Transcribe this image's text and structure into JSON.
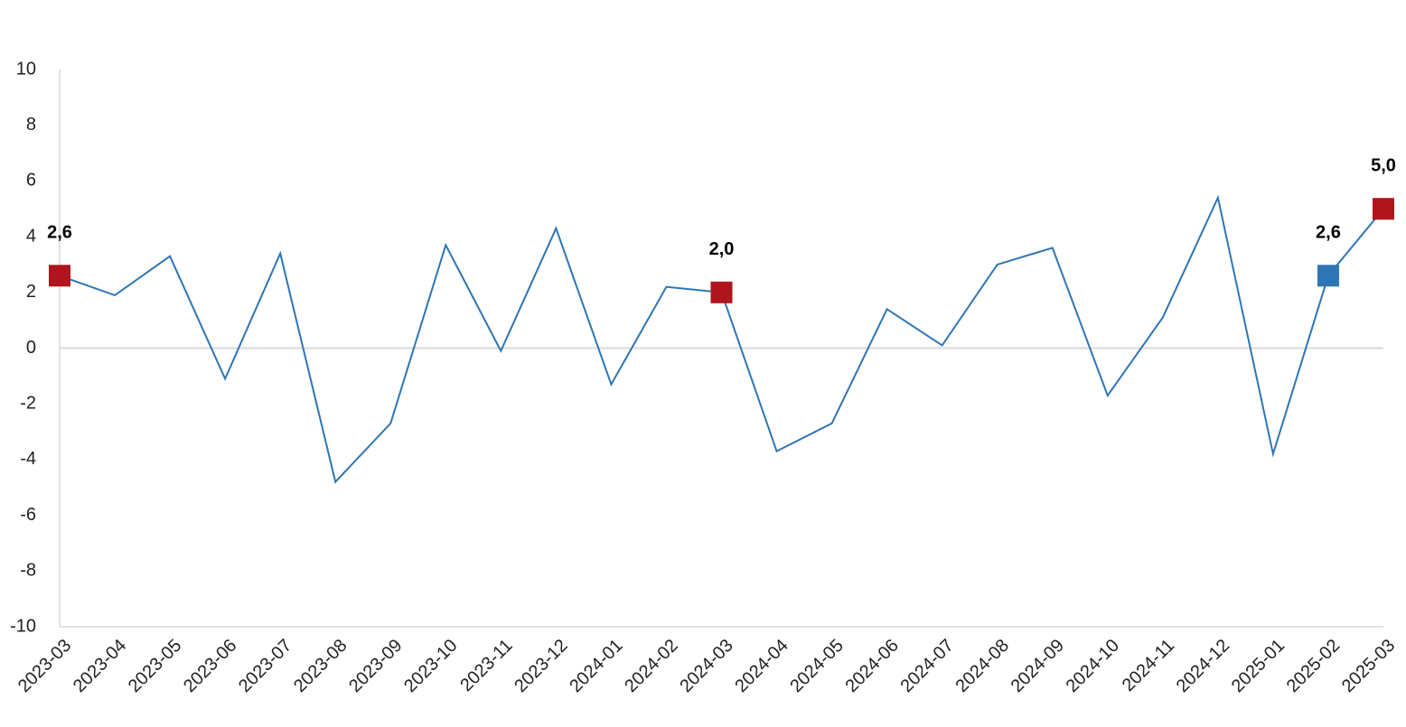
{
  "chart_data": {
    "type": "line",
    "categories": [
      "2023-03",
      "2023-04",
      "2023-05",
      "2023-06",
      "2023-07",
      "2023-08",
      "2023-09",
      "2023-10",
      "2023-11",
      "2023-12",
      "2024-01",
      "2024-02",
      "2024-03",
      "2024-04",
      "2024-05",
      "2024-06",
      "2024-07",
      "2024-08",
      "2024-09",
      "2024-10",
      "2024-11",
      "2024-12",
      "2025-01",
      "2025-02",
      "2025-03"
    ],
    "series": [
      {
        "color": "#2e75b6",
        "values": [
          2.6,
          1.9,
          3.3,
          -1.1,
          3.4,
          -4.8,
          -2.7,
          3.7,
          -0.1,
          4.3,
          -1.3,
          2.2,
          2.0,
          -3.7,
          -2.7,
          1.4,
          0.1,
          3.0,
          3.6,
          -1.7,
          1.1,
          5.4,
          -3.8,
          2.6,
          5.0
        ]
      }
    ],
    "highlights": [
      {
        "x": "2023-03",
        "value": 2.6,
        "label": "2,6",
        "color": "#b0141c"
      },
      {
        "x": "2024-03",
        "value": 2.0,
        "label": "2,0",
        "color": "#b0141c"
      },
      {
        "x": "2025-02",
        "value": 2.6,
        "label": "2,6",
        "color": "#2e75b6"
      },
      {
        "x": "2025-03",
        "value": 5.0,
        "label": "5,0",
        "color": "#b0141c"
      }
    ],
    "ylim": [
      -10,
      10
    ],
    "yticks": [
      -10,
      -8,
      -6,
      -4,
      -2,
      0,
      2,
      4,
      6,
      8,
      10
    ]
  }
}
